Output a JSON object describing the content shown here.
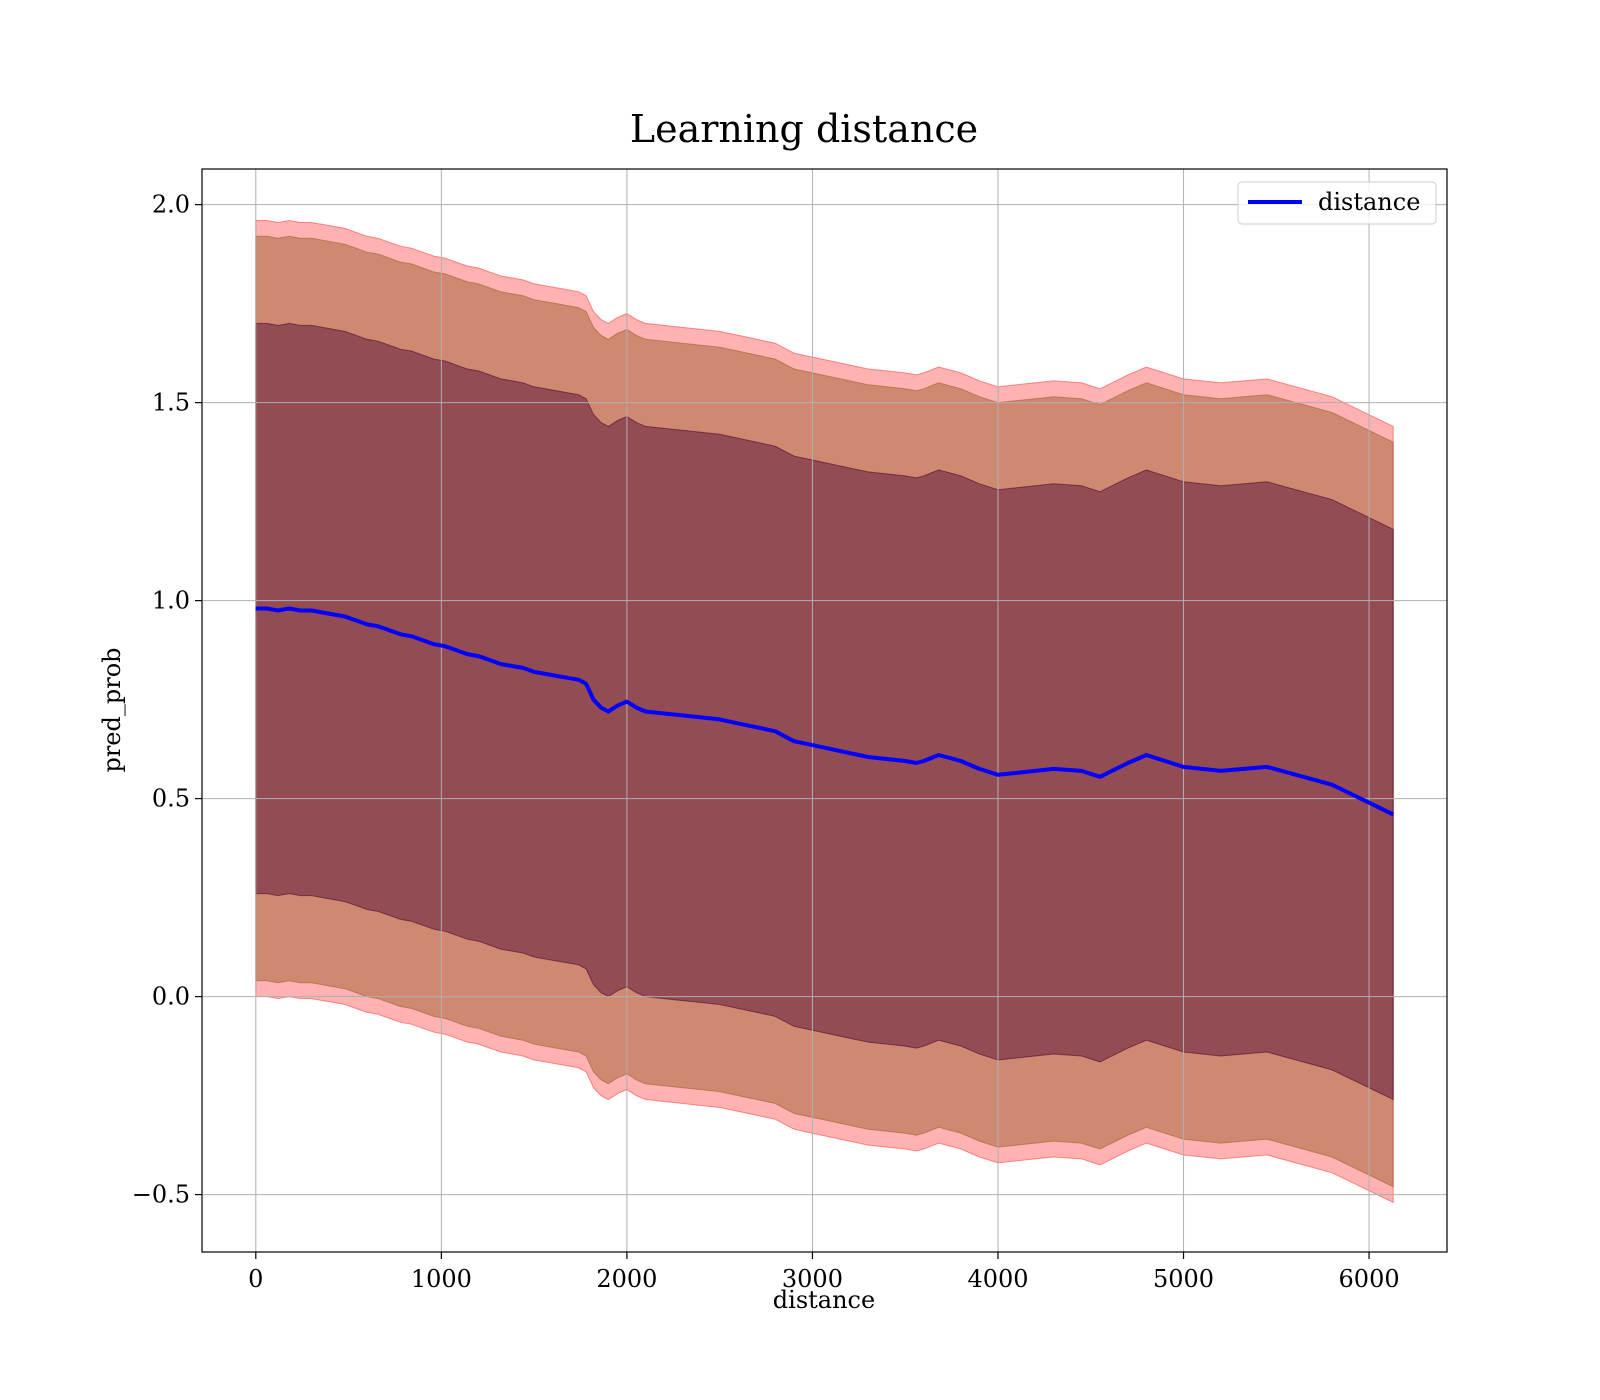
{
  "chart_data": {
    "type": "line",
    "title": "Learning distance",
    "xlabel": "distance",
    "ylabel": "pred_prob",
    "xlim": [
      -290,
      6420
    ],
    "ylim": [
      -0.645,
      2.09
    ],
    "xticks": [
      0,
      1000,
      2000,
      3000,
      4000,
      5000,
      6000
    ],
    "xtick_labels": [
      "0",
      "1000",
      "2000",
      "3000",
      "4000",
      "5000",
      "6000"
    ],
    "yticks": [
      -0.5,
      0.0,
      0.5,
      1.0,
      1.5,
      2.0
    ],
    "ytick_labels": [
      "−0.5",
      "0.0",
      "0.5",
      "1.0",
      "1.5",
      "2.0"
    ],
    "grid": true,
    "legend_position": "top-right",
    "series": [
      {
        "name": "distance",
        "color": "#0000ff",
        "x": [
          0,
          60,
          120,
          180,
          240,
          300,
          360,
          420,
          480,
          540,
          600,
          660,
          720,
          780,
          840,
          900,
          960,
          1020,
          1080,
          1140,
          1200,
          1260,
          1320,
          1380,
          1440,
          1500,
          1560,
          1620,
          1680,
          1740,
          1780,
          1820,
          1860,
          1900,
          1950,
          2000,
          2050,
          2100,
          2200,
          2300,
          2400,
          2500,
          2600,
          2700,
          2800,
          2900,
          3000,
          3100,
          3200,
          3300,
          3400,
          3500,
          3560,
          3600,
          3680,
          3800,
          3900,
          4000,
          4100,
          4200,
          4300,
          4450,
          4550,
          4700,
          4800,
          5000,
          5200,
          5450,
          5800,
          6130
        ],
        "values": [
          0.98,
          0.98,
          0.975,
          0.98,
          0.975,
          0.975,
          0.97,
          0.965,
          0.96,
          0.95,
          0.94,
          0.935,
          0.925,
          0.915,
          0.91,
          0.9,
          0.89,
          0.885,
          0.875,
          0.865,
          0.86,
          0.85,
          0.84,
          0.835,
          0.83,
          0.82,
          0.815,
          0.81,
          0.805,
          0.8,
          0.79,
          0.75,
          0.73,
          0.72,
          0.735,
          0.745,
          0.73,
          0.72,
          0.715,
          0.71,
          0.705,
          0.7,
          0.69,
          0.68,
          0.67,
          0.645,
          0.635,
          0.625,
          0.615,
          0.605,
          0.6,
          0.595,
          0.59,
          0.595,
          0.61,
          0.595,
          0.575,
          0.56,
          0.565,
          0.57,
          0.575,
          0.57,
          0.555,
          0.59,
          0.61,
          0.58,
          0.57,
          0.58,
          0.535,
          0.46
        ]
      }
    ],
    "bands": [
      {
        "color": "#ff0000",
        "opacity": 0.3,
        "offset": 0.98
      },
      {
        "color": "#a06030",
        "opacity": 0.5,
        "offset": 0.94
      },
      {
        "color": "#4a0030",
        "opacity": 0.45,
        "offset": 0.72
      }
    ]
  }
}
